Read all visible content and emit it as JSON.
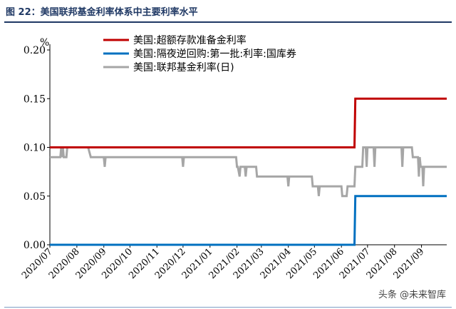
{
  "figure": {
    "title": "图 22：美国联邦基金利率体系中主要利率水平",
    "watermark": "头条 @未来智库"
  },
  "colors": {
    "title": "#1f3864",
    "series_red": "#c00000",
    "series_blue": "#0070c0",
    "series_gray": "#a6a6a6"
  },
  "chart_data": {
    "type": "line",
    "ylabel": "%",
    "ylim": [
      0,
      0.2
    ],
    "yticks": [
      "0.00",
      "0.05",
      "0.10",
      "0.15",
      "0.20"
    ],
    "xlim": [
      "2020-07-01",
      "2021-09-30"
    ],
    "xticks": [
      {
        "date": "2020-07-01",
        "label": "2020/07"
      },
      {
        "date": "2020-08-01",
        "label": "2020/08"
      },
      {
        "date": "2020-09-01",
        "label": "2020/09"
      },
      {
        "date": "2020-10-01",
        "label": "2020/10"
      },
      {
        "date": "2020-11-01",
        "label": "2020/11"
      },
      {
        "date": "2020-12-01",
        "label": "2020/12"
      },
      {
        "date": "2021-01-01",
        "label": "2021/01"
      },
      {
        "date": "2021-02-01",
        "label": "2021/02"
      },
      {
        "date": "2021-03-01",
        "label": "2021/03"
      },
      {
        "date": "2021-04-01",
        "label": "2021/04"
      },
      {
        "date": "2021-05-01",
        "label": "2021/05"
      },
      {
        "date": "2021-06-01",
        "label": "2021/06"
      },
      {
        "date": "2021-07-01",
        "label": "2021/07"
      },
      {
        "date": "2021-08-01",
        "label": "2021/08"
      },
      {
        "date": "2021-09-01",
        "label": "2021/09"
      }
    ],
    "legend_position": "top",
    "series": [
      {
        "name": "美国:超额存款准备金利率",
        "color_key": "series_red",
        "points": [
          [
            "2020-07-01",
            0.1
          ],
          [
            "2021-06-16",
            0.1
          ],
          [
            "2021-06-17",
            0.15
          ],
          [
            "2021-09-30",
            0.15
          ]
        ]
      },
      {
        "name": "美国:隔夜逆回购:第一批:利率:国库券",
        "color_key": "series_blue",
        "points": [
          [
            "2020-07-01",
            0.0
          ],
          [
            "2021-06-16",
            0.0
          ],
          [
            "2021-06-17",
            0.05
          ],
          [
            "2021-09-30",
            0.05
          ]
        ]
      },
      {
        "name": "美国:联邦基金利率(日)",
        "color_key": "series_gray",
        "points": [
          [
            "2020-07-01",
            0.09
          ],
          [
            "2020-07-02",
            0.09
          ],
          [
            "2020-07-03",
            0.09
          ],
          [
            "2020-07-06",
            0.09
          ],
          [
            "2020-07-07",
            0.09
          ],
          [
            "2020-07-13",
            0.09
          ],
          [
            "2020-07-14",
            0.1
          ],
          [
            "2020-07-15",
            0.09
          ],
          [
            "2020-07-16",
            0.1
          ],
          [
            "2020-07-17",
            0.09
          ],
          [
            "2020-07-20",
            0.09
          ],
          [
            "2020-07-21",
            0.1
          ],
          [
            "2020-08-14",
            0.1
          ],
          [
            "2020-08-17",
            0.09
          ],
          [
            "2020-08-18",
            0.09
          ],
          [
            "2020-09-01",
            0.09
          ],
          [
            "2020-09-02",
            0.08
          ],
          [
            "2020-09-03",
            0.09
          ],
          [
            "2020-11-30",
            0.09
          ],
          [
            "2020-12-01",
            0.08
          ],
          [
            "2020-12-02",
            0.09
          ],
          [
            "2021-01-31",
            0.09
          ],
          [
            "2021-02-01",
            0.08
          ],
          [
            "2021-02-02",
            0.08
          ],
          [
            "2021-02-04",
            0.07
          ],
          [
            "2021-02-05",
            0.08
          ],
          [
            "2021-02-10",
            0.08
          ],
          [
            "2021-02-11",
            0.07
          ],
          [
            "2021-02-12",
            0.08
          ],
          [
            "2021-02-23",
            0.08
          ],
          [
            "2021-02-24",
            0.07
          ],
          [
            "2021-03-31",
            0.07
          ],
          [
            "2021-04-01",
            0.06
          ],
          [
            "2021-04-02",
            0.07
          ],
          [
            "2021-04-28",
            0.07
          ],
          [
            "2021-04-29",
            0.06
          ],
          [
            "2021-05-05",
            0.06
          ],
          [
            "2021-05-06",
            0.05
          ],
          [
            "2021-05-07",
            0.06
          ],
          [
            "2021-06-01",
            0.06
          ],
          [
            "2021-06-02",
            0.05
          ],
          [
            "2021-06-07",
            0.05
          ],
          [
            "2021-06-08",
            0.06
          ],
          [
            "2021-06-16",
            0.06
          ],
          [
            "2021-06-17",
            0.08
          ],
          [
            "2021-06-25",
            0.08
          ],
          [
            "2021-06-26",
            0.1
          ],
          [
            "2021-06-29",
            0.1
          ],
          [
            "2021-06-30",
            0.08
          ],
          [
            "2021-07-01",
            0.1
          ],
          [
            "2021-07-08",
            0.1
          ],
          [
            "2021-07-09",
            0.08
          ],
          [
            "2021-07-10",
            0.1
          ],
          [
            "2021-08-09",
            0.1
          ],
          [
            "2021-08-10",
            0.08
          ],
          [
            "2021-08-11",
            0.1
          ],
          [
            "2021-08-21",
            0.1
          ],
          [
            "2021-08-22",
            0.09
          ],
          [
            "2021-08-28",
            0.09
          ],
          [
            "2021-08-29",
            0.07
          ],
          [
            "2021-08-30",
            0.09
          ],
          [
            "2021-08-31",
            0.08
          ],
          [
            "2021-09-02",
            0.08
          ],
          [
            "2021-09-03",
            0.06
          ],
          [
            "2021-09-04",
            0.08
          ],
          [
            "2021-09-30",
            0.08
          ]
        ]
      }
    ]
  }
}
